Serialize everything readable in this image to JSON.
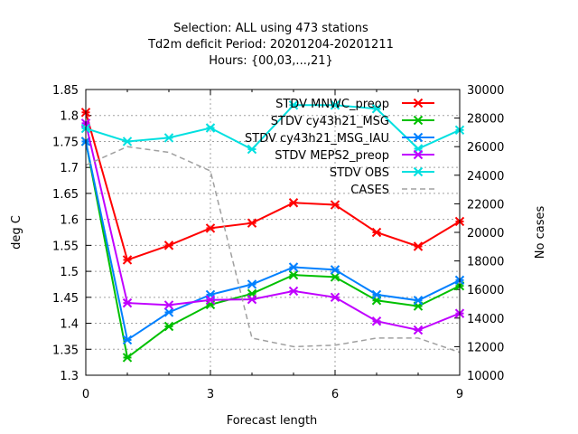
{
  "chart_data": {
    "type": "line",
    "title_lines": [
      "Selection: ALL using   473 stations",
      "Td2m deficit   Period: 20201204-20201211",
      "Hours: {00,03,...,21}"
    ],
    "xlabel": "Forecast length",
    "ylabel": "deg C",
    "y2label": "No cases",
    "xlim": [
      0,
      9
    ],
    "ylim": [
      1.3,
      1.85
    ],
    "y2lim": [
      10000,
      30000
    ],
    "x_ticks": [
      0,
      3,
      6,
      9
    ],
    "y_ticks": [
      1.3,
      1.35,
      1.4,
      1.45,
      1.5,
      1.55,
      1.6,
      1.65,
      1.7,
      1.75,
      1.8,
      1.85
    ],
    "y_tick_labels": [
      "1.3",
      "1.35",
      "1.4",
      "1.45",
      "1.5",
      "1.55",
      "1.6",
      "1.65",
      "1.7",
      "1.75",
      "1.8",
      "1.85"
    ],
    "y2_ticks": [
      10000,
      12000,
      14000,
      16000,
      18000,
      20000,
      22000,
      24000,
      26000,
      28000,
      30000
    ],
    "grid": true,
    "legend_position": "top-right",
    "x": [
      0,
      1,
      2,
      3,
      4,
      5,
      6,
      7,
      8,
      9
    ],
    "series": [
      {
        "name": "STDV MNWC_preop",
        "color": "#ff0000",
        "axis": "left",
        "values": [
          1.806,
          1.522,
          1.55,
          1.583,
          1.593,
          1.632,
          1.628,
          1.575,
          1.548,
          1.596
        ]
      },
      {
        "name": "STDV cy43h21_MSG",
        "color": "#00c000",
        "axis": "left",
        "values": [
          1.75,
          1.334,
          1.394,
          1.436,
          1.457,
          1.493,
          1.489,
          1.444,
          1.433,
          1.472
        ]
      },
      {
        "name": "STDV cy43h21_MSG_IAU",
        "color": "#0080ff",
        "axis": "left",
        "values": [
          1.75,
          1.368,
          1.421,
          1.455,
          1.475,
          1.508,
          1.503,
          1.455,
          1.444,
          1.483
        ]
      },
      {
        "name": "STDV MEPS2_preop",
        "color": "#c000ff",
        "axis": "left",
        "values": [
          1.785,
          1.439,
          1.435,
          1.445,
          1.446,
          1.462,
          1.45,
          1.404,
          1.387,
          1.419
        ]
      },
      {
        "name": "STDV OBS",
        "color": "#00e0e0",
        "axis": "left",
        "values": [
          1.775,
          1.75,
          1.757,
          1.776,
          1.735,
          1.82,
          1.82,
          1.813,
          1.736,
          1.772
        ]
      },
      {
        "name": "CASES",
        "color": "#a0a0a0",
        "axis": "right",
        "dashed": true,
        "values": [
          24700,
          26000,
          25600,
          24300,
          12600,
          12000,
          12100,
          12600,
          12600,
          11600
        ]
      }
    ]
  }
}
